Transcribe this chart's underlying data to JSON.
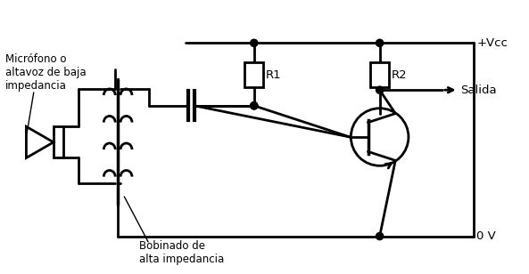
{
  "bg_color": "#ffffff",
  "line_color": "#000000",
  "line_width": 2.0,
  "text_color": "#000000",
  "labels": {
    "vcc": "+Vcc",
    "gnd": "0 V",
    "r1": "R1",
    "r2": "R2",
    "salida": "Salida",
    "mic": "Micrófono o\naltavoz de baja\nimpedancia",
    "bobina": "Bobinado de\nalta impedancia"
  },
  "figsize": [
    5.93,
    3.08
  ],
  "dpi": 100
}
